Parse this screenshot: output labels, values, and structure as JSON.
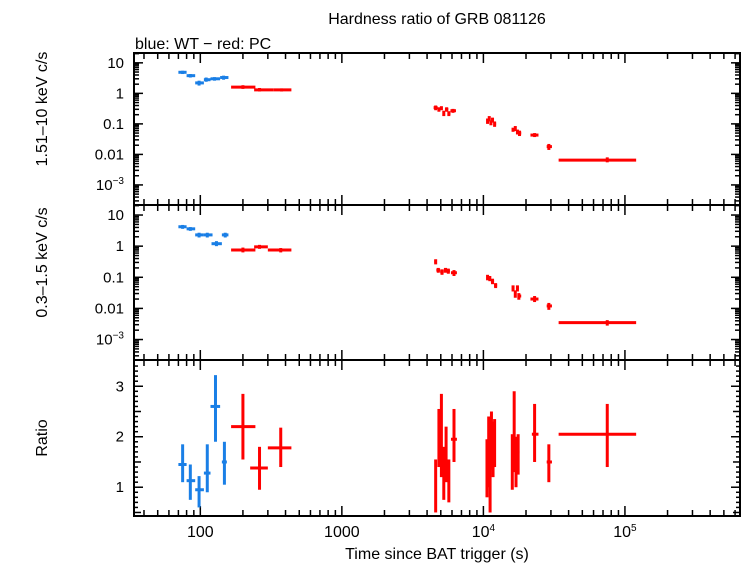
{
  "chart_data": {
    "type": "scatter",
    "title": "Hardness ratio of GRB 081126",
    "subtitle": "blue: WT − red: PC",
    "xlabel": "Time since BAT trigger (s)",
    "xscale": "log",
    "xlim": [
      34,
      650000
    ],
    "xticks": [
      {
        "v": 100,
        "label": "100"
      },
      {
        "v": 1000,
        "label": "1000"
      },
      {
        "v": 10000,
        "label": "10",
        "sup": "4"
      },
      {
        "v": 100000,
        "label": "10",
        "sup": "5"
      }
    ],
    "colors": {
      "WT": "#1a7fe6",
      "PC": "#ff0000"
    },
    "point_format": [
      "t",
      "t_low",
      "t_high",
      "y",
      "y_low",
      "y_high"
    ],
    "panels": [
      {
        "ylabel": "1.51–10 keV c/s",
        "yscale": "log",
        "ylim": [
          0.00022,
          21
        ],
        "yticks": [
          {
            "v": 10,
            "label": "10"
          },
          {
            "v": 1,
            "label": "1"
          },
          {
            "v": 0.1,
            "label": "0.1"
          },
          {
            "v": 0.01,
            "label": "0.01"
          },
          {
            "v": 0.001,
            "label": "10",
            "sup": "−3"
          }
        ],
        "series": [
          {
            "mode": "WT",
            "points": [
              [
                75,
                70,
                80,
                4.9,
                4.3,
                5.5
              ],
              [
                85,
                80,
                92,
                3.8,
                3.3,
                4.3
              ],
              [
                98,
                92,
                106,
                2.2,
                1.8,
                2.6
              ],
              [
                110,
                106,
                118,
                2.8,
                2.4,
                3.3
              ],
              [
                126,
                118,
                138,
                3.0,
                2.6,
                3.4
              ],
              [
                146,
                138,
                158,
                3.3,
                2.8,
                3.8
              ]
            ]
          },
          {
            "mode": "PC",
            "points": [
              [
                200,
                165,
                245,
                1.6,
                1.4,
                1.85
              ],
              [
                262,
                240,
                330,
                1.3,
                1.15,
                1.5
              ],
              [
                375,
                330,
                440,
                1.3,
                1.15,
                1.45
              ],
              [
                4600,
                4450,
                4750,
                0.34,
                0.28,
                0.4
              ],
              [
                4850,
                4750,
                4950,
                0.3,
                0.25,
                0.35
              ],
              [
                5050,
                4950,
                5150,
                0.33,
                0.28,
                0.38
              ],
              [
                5250,
                5150,
                5350,
                0.22,
                0.18,
                0.27
              ],
              [
                5500,
                5350,
                5650,
                0.3,
                0.25,
                0.35
              ],
              [
                5700,
                5600,
                5850,
                0.22,
                0.18,
                0.26
              ],
              [
                6100,
                5850,
                6400,
                0.27,
                0.23,
                0.31
              ],
              [
                10700,
                10500,
                10900,
                0.12,
                0.1,
                0.15
              ],
              [
                11000,
                10900,
                11150,
                0.15,
                0.12,
                0.18
              ],
              [
                11300,
                11150,
                11450,
                0.11,
                0.09,
                0.13
              ],
              [
                11600,
                11450,
                11800,
                0.13,
                0.11,
                0.16
              ],
              [
                12000,
                11800,
                12300,
                0.1,
                0.08,
                0.12
              ],
              [
                16200,
                15900,
                16500,
                0.065,
                0.055,
                0.075
              ],
              [
                16800,
                16500,
                17100,
                0.07,
                0.058,
                0.085
              ],
              [
                17400,
                17100,
                17700,
                0.055,
                0.045,
                0.065
              ],
              [
                18000,
                17700,
                18500,
                0.05,
                0.04,
                0.06
              ],
              [
                23000,
                21500,
                24500,
                0.043,
                0.037,
                0.05
              ],
              [
                29000,
                28000,
                30500,
                0.018,
                0.014,
                0.022
              ],
              [
                75000,
                34000,
                120000,
                0.0065,
                0.0055,
                0.008
              ]
            ]
          }
        ]
      },
      {
        "ylabel": "0.3–1.5 keV c/s",
        "yscale": "log",
        "ylim": [
          0.00022,
          21
        ],
        "yticks": [
          {
            "v": 10,
            "label": "10"
          },
          {
            "v": 1,
            "label": "1"
          },
          {
            "v": 0.1,
            "label": "0.1"
          },
          {
            "v": 0.01,
            "label": "0.01"
          },
          {
            "v": 0.001,
            "label": "10",
            "sup": "−3"
          }
        ],
        "series": [
          {
            "mode": "WT",
            "points": [
              [
                75,
                70,
                80,
                4.2,
                3.6,
                4.8
              ],
              [
                85,
                80,
                92,
                3.6,
                3.1,
                4.1
              ],
              [
                98,
                92,
                106,
                2.3,
                1.9,
                2.7
              ],
              [
                112,
                106,
                122,
                2.3,
                1.9,
                2.7
              ],
              [
                130,
                120,
                142,
                1.2,
                1.0,
                1.45
              ],
              [
                150,
                142,
                158,
                2.3,
                1.9,
                2.7
              ]
            ]
          },
          {
            "mode": "PC",
            "points": [
              [
                200,
                165,
                245,
                0.75,
                0.63,
                0.9
              ],
              [
                262,
                240,
                300,
                0.95,
                0.82,
                1.1
              ],
              [
                370,
                300,
                440,
                0.75,
                0.63,
                0.87
              ],
              [
                4600,
                4500,
                4700,
                0.32,
                0.26,
                0.38
              ],
              [
                4800,
                4650,
                4950,
                0.17,
                0.14,
                0.2
              ],
              [
                5100,
                4950,
                5250,
                0.15,
                0.12,
                0.18
              ],
              [
                5400,
                5250,
                5550,
                0.17,
                0.14,
                0.2
              ],
              [
                5650,
                5550,
                5800,
                0.16,
                0.13,
                0.19
              ],
              [
                6200,
                5900,
                6500,
                0.14,
                0.11,
                0.17
              ],
              [
                10700,
                10500,
                10900,
                0.1,
                0.08,
                0.12
              ],
              [
                11100,
                10900,
                11300,
                0.09,
                0.075,
                0.11
              ],
              [
                11600,
                11300,
                11900,
                0.075,
                0.06,
                0.09
              ],
              [
                12200,
                11900,
                12500,
                0.055,
                0.045,
                0.065
              ],
              [
                16200,
                15900,
                16500,
                0.045,
                0.035,
                0.055
              ],
              [
                16800,
                16500,
                17100,
                0.03,
                0.022,
                0.038
              ],
              [
                17400,
                17100,
                17800,
                0.045,
                0.035,
                0.055
              ],
              [
                17800,
                17500,
                18500,
                0.025,
                0.019,
                0.031
              ],
              [
                23000,
                21500,
                24500,
                0.02,
                0.016,
                0.025
              ],
              [
                29000,
                28000,
                30500,
                0.012,
                0.009,
                0.015
              ],
              [
                75000,
                34000,
                120000,
                0.0035,
                0.0028,
                0.0042
              ]
            ]
          }
        ]
      },
      {
        "ylabel": "Ratio",
        "yscale": "linear",
        "ylim": [
          0.43,
          3.52
        ],
        "yticks": [
          {
            "v": 1,
            "label": "1"
          },
          {
            "v": 2,
            "label": "2"
          },
          {
            "v": 3,
            "label": "3"
          }
        ],
        "series": [
          {
            "mode": "WT",
            "points": [
              [
                75,
                70,
                80,
                1.45,
                1.1,
                1.85
              ],
              [
                85,
                80,
                92,
                1.13,
                0.75,
                1.45
              ],
              [
                98,
                92,
                106,
                0.95,
                0.6,
                1.22
              ],
              [
                112,
                106,
                118,
                1.28,
                0.9,
                1.85
              ],
              [
                128,
                118,
                138,
                2.6,
                1.9,
                3.22
              ],
              [
                148,
                142,
                154,
                1.5,
                1.05,
                1.9
              ]
            ]
          },
          {
            "mode": "PC",
            "points": [
              [
                200,
                165,
                245,
                2.2,
                1.55,
                2.85
              ],
              [
                262,
                225,
                300,
                1.38,
                0.95,
                1.8
              ],
              [
                370,
                300,
                440,
                1.78,
                1.4,
                2.18
              ],
              [
                4600,
                4550,
                4650,
                1.0,
                0.5,
                1.55
              ],
              [
                4850,
                4750,
                4950,
                1.95,
                1.4,
                2.55
              ],
              [
                5050,
                4950,
                5150,
                1.7,
                1.2,
                2.85
              ],
              [
                5250,
                5150,
                5350,
                1.3,
                0.75,
                1.8
              ],
              [
                5450,
                5350,
                5550,
                1.6,
                1.1,
                2.2
              ],
              [
                5700,
                5600,
                5800,
                1.15,
                0.7,
                1.55
              ],
              [
                6200,
                5900,
                6500,
                1.95,
                1.5,
                2.55
              ],
              [
                10600,
                10450,
                10750,
                1.3,
                0.8,
                1.95
              ],
              [
                10900,
                10750,
                11050,
                1.55,
                1.0,
                2.4
              ],
              [
                11150,
                11050,
                11250,
                1.1,
                0.5,
                1.85
              ],
              [
                11400,
                11250,
                11550,
                1.85,
                1.35,
                2.5
              ],
              [
                11700,
                11550,
                11850,
                1.65,
                1.2,
                2.3
              ],
              [
                12000,
                11850,
                12150,
                1.9,
                1.4,
                2.35
              ],
              [
                16000,
                15800,
                16200,
                1.5,
                0.95,
                2.05
              ],
              [
                16500,
                16300,
                16700,
                1.9,
                1.3,
                2.9
              ],
              [
                17000,
                16800,
                17200,
                1.45,
                1.0,
                2.0
              ],
              [
                17600,
                17300,
                18000,
                1.7,
                1.25,
                2.05
              ],
              [
                23000,
                22000,
                24500,
                2.05,
                1.5,
                2.65
              ],
              [
                29000,
                28000,
                30500,
                1.5,
                1.1,
                1.85
              ],
              [
                75000,
                34000,
                120000,
                2.05,
                1.4,
                2.65
              ]
            ]
          }
        ]
      }
    ]
  }
}
